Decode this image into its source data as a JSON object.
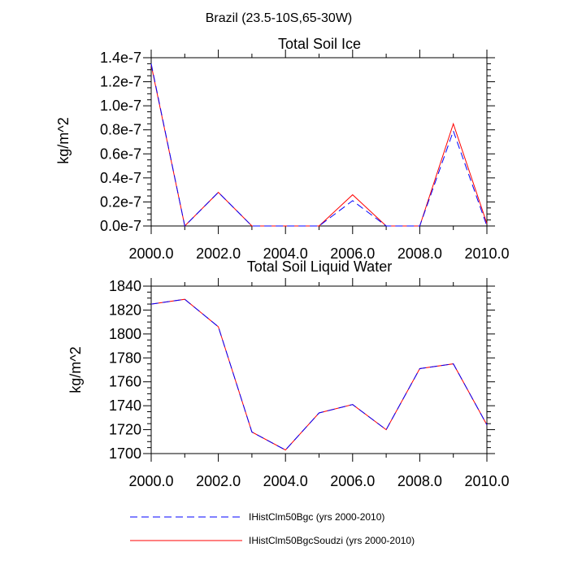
{
  "figure": {
    "suptitle": "Brazil (23.5-10S,65-30W)"
  },
  "chart_data": [
    {
      "type": "line",
      "title": "Total Soil Ice",
      "xlabel": "",
      "ylabel": "kg/m^2",
      "x": [
        2000,
        2001,
        2002,
        2003,
        2004,
        2005,
        2006,
        2007,
        2008,
        2009,
        2010
      ],
      "xlim": [
        2000,
        2010
      ],
      "ylim": [
        0,
        1.4e-07
      ],
      "xticks": [
        2000,
        2002,
        2004,
        2006,
        2008,
        2010
      ],
      "xtick_labels": [
        "2000.0",
        "2002.0",
        "2004.0",
        "2006.0",
        "2008.0",
        "2010.0"
      ],
      "yticks": [
        0,
        2e-08,
        4e-08,
        6e-08,
        8e-08,
        1e-07,
        1.2e-07,
        1.4e-07
      ],
      "ytick_labels": [
        "0.0e-7",
        "0.2e-7",
        "0.4e-7",
        "0.6e-7",
        "0.8e-7",
        "1.0e-7",
        "1.2e-7",
        "1.4e-7"
      ],
      "grid": false,
      "series": [
        {
          "name": "IHistClm50Bgc (yrs 2000-2010)",
          "color": "#0000ff",
          "dash": "dashed",
          "values": [
            1.35e-07,
            0,
            2.8e-08,
            0,
            0,
            0,
            2.1e-08,
            0,
            0,
            7.9e-08,
            0
          ]
        },
        {
          "name": "IHistClm50BgcSoudzi (yrs 2000-2010)",
          "color": "#ff0000",
          "dash": "solid",
          "values": [
            1.34e-07,
            0,
            2.8e-08,
            0,
            0,
            0,
            2.6e-08,
            0,
            0,
            8.5e-08,
            2e-09
          ]
        }
      ]
    },
    {
      "type": "line",
      "title": "Total Soil Liquid Water",
      "xlabel": "",
      "ylabel": "kg/m^2",
      "x": [
        2000,
        2001,
        2002,
        2003,
        2004,
        2005,
        2006,
        2007,
        2008,
        2009,
        2010
      ],
      "xlim": [
        2000,
        2010
      ],
      "ylim": [
        1700,
        1840
      ],
      "xticks": [
        2000,
        2002,
        2004,
        2006,
        2008,
        2010
      ],
      "xtick_labels": [
        "2000.0",
        "2002.0",
        "2004.0",
        "2006.0",
        "2008.0",
        "2010.0"
      ],
      "yticks": [
        1700,
        1720,
        1740,
        1760,
        1780,
        1800,
        1820,
        1840
      ],
      "ytick_labels": [
        "1700",
        "1720",
        "1740",
        "1760",
        "1780",
        "1800",
        "1820",
        "1840"
      ],
      "grid": false,
      "series": [
        {
          "name": "IHistClm50Bgc (yrs 2000-2010)",
          "color": "#0000ff",
          "dash": "dashed",
          "values": [
            1825,
            1829,
            1806,
            1718,
            1703,
            1734,
            1741,
            1720,
            1771,
            1775,
            1724
          ]
        },
        {
          "name": "IHistClm50BgcSoudzi (yrs 2000-2010)",
          "color": "#ff0000",
          "dash": "solid",
          "values": [
            1825,
            1829,
            1806,
            1718,
            1703,
            1734,
            1741,
            1720,
            1771,
            1775,
            1724
          ]
        }
      ]
    }
  ],
  "legend": {
    "placement": "bottom-center",
    "entries": [
      {
        "label": "IHistClm50Bgc (yrs 2000-2010)",
        "color": "#0000ff",
        "dash": "dashed"
      },
      {
        "label": "IHistClm50BgcSoudzi (yrs 2000-2010)",
        "color": "#ff0000",
        "dash": "solid"
      }
    ]
  }
}
